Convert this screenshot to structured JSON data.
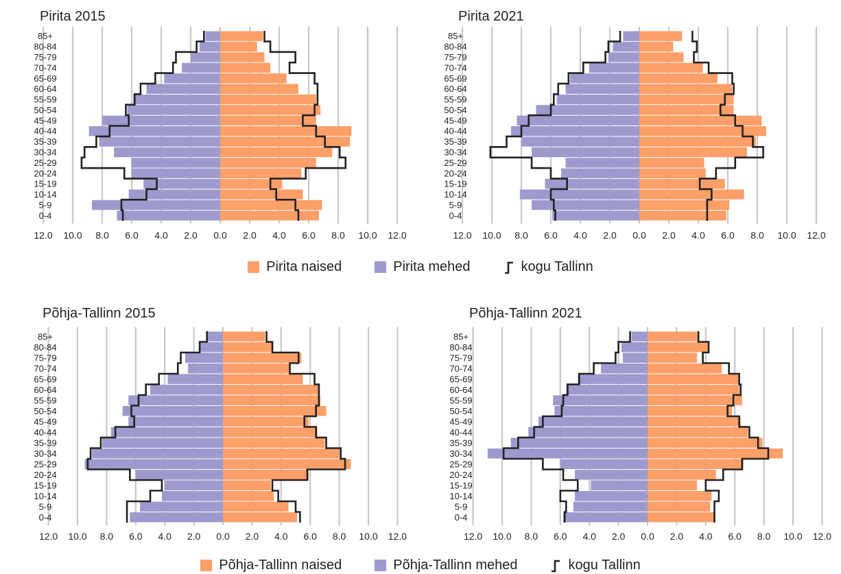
{
  "colors": {
    "female": "#FD9F69",
    "male": "#9E9ACE",
    "outline": "#222222",
    "grid": "#C8C8C8"
  },
  "age_groups": [
    "85+",
    "80-84",
    "75-79",
    "70-74",
    "65-69",
    "60-64",
    "55-59",
    "50-54",
    "45-49",
    "40-44",
    "35-39",
    "30-34",
    "25-29",
    "20-24",
    "15-19",
    "10-14",
    "5-9",
    "0-4"
  ],
  "tick_labels": [
    "12.0",
    "10.0",
    "8.0",
    "6.0",
    "4.0",
    "2.0",
    "0.0",
    "2.0",
    "4.0",
    "6.0",
    "8.0",
    "10.0",
    "12.0"
  ],
  "legends": [
    {
      "female_label": "Pirita naised",
      "male_label": "Pirita mehed",
      "outline_label": "kogu Tallinn"
    },
    {
      "female_label": "Põhja-Tallinn naised",
      "male_label": "Põhja-Tallinn mehed",
      "outline_label": "kogu Tallinn"
    }
  ],
  "chart_data": [
    {
      "type": "bar",
      "title": "Pirita 2015",
      "xlim": [
        -12,
        12
      ],
      "categories": [
        "85+",
        "80-84",
        "75-79",
        "70-74",
        "65-69",
        "60-64",
        "55-59",
        "50-54",
        "45-49",
        "40-44",
        "35-39",
        "30-34",
        "25-29",
        "20-24",
        "15-19",
        "10-14",
        "5-9",
        "0-4"
      ],
      "series": [
        {
          "name": "Pirita mehed",
          "values": [
            -1.0,
            -1.4,
            -2.0,
            -2.6,
            -3.8,
            -5.0,
            -5.9,
            -6.3,
            -8.0,
            -8.9,
            -8.2,
            -7.2,
            -6.0,
            -6.0,
            -5.2,
            -6.2,
            -8.7,
            -7.0
          ]
        },
        {
          "name": "Pirita naised",
          "values": [
            2.9,
            2.5,
            3.0,
            3.4,
            4.5,
            5.3,
            6.5,
            6.8,
            6.5,
            8.9,
            8.8,
            7.6,
            6.5,
            5.5,
            4.2,
            5.6,
            6.9,
            6.7
          ]
        },
        {
          "name": "kogu Tallinn",
          "male": [
            -1.1,
            -1.6,
            -3.0,
            -3.2,
            -4.4,
            -5.4,
            -5.8,
            -6.4,
            -6.2,
            -7.5,
            -8.4,
            -9.2,
            -9.4,
            -6.5,
            -4.3,
            -5.0,
            -6.7,
            -6.6
          ],
          "female": [
            3.0,
            3.4,
            5.1,
            4.7,
            6.4,
            6.6,
            6.6,
            6.4,
            5.6,
            6.5,
            7.1,
            8.1,
            8.5,
            5.8,
            3.4,
            3.8,
            5.1,
            5.3
          ]
        }
      ]
    },
    {
      "type": "bar",
      "title": "Pirita 2021",
      "xlim": [
        -12,
        12
      ],
      "categories": [
        "85+",
        "80-84",
        "75-79",
        "70-74",
        "65-69",
        "60-64",
        "55-59",
        "50-54",
        "45-49",
        "40-44",
        "35-39",
        "30-34",
        "25-29",
        "20-24",
        "15-19",
        "10-14",
        "5-9",
        "0-4"
      ],
      "series": [
        {
          "name": "Pirita mehed",
          "values": [
            -1.1,
            -1.8,
            -2.1,
            -3.4,
            -4.7,
            -5.0,
            -5.6,
            -7.0,
            -8.3,
            -8.7,
            -8.0,
            -7.3,
            -5.0,
            -5.3,
            -6.4,
            -8.1,
            -7.3,
            -5.9
          ]
        },
        {
          "name": "Pirita naised",
          "values": [
            2.9,
            2.3,
            3.0,
            4.3,
            5.3,
            6.3,
            6.4,
            6.4,
            8.3,
            8.6,
            7.9,
            7.3,
            4.4,
            4.5,
            5.8,
            7.1,
            6.1,
            5.9
          ]
        },
        {
          "name": "kogu Tallinn",
          "male": [
            -1.3,
            -2.1,
            -2.3,
            -3.8,
            -4.8,
            -5.5,
            -5.8,
            -6.0,
            -7.5,
            -8.0,
            -9.0,
            -10.1,
            -7.3,
            -6.0,
            -4.9,
            -6.0,
            -5.8,
            -5.7
          ],
          "female": [
            3.6,
            3.9,
            3.7,
            4.7,
            6.3,
            6.4,
            5.8,
            5.5,
            6.5,
            7.0,
            7.7,
            8.4,
            6.5,
            5.2,
            4.1,
            4.9,
            4.6,
            4.6
          ]
        }
      ]
    },
    {
      "type": "bar",
      "title": "Põhja-Tallinn 2015",
      "xlim": [
        -12,
        12
      ],
      "categories": [
        "85+",
        "80-84",
        "75-79",
        "70-74",
        "65-69",
        "60-64",
        "55-59",
        "50-54",
        "45-49",
        "40-44",
        "35-39",
        "30-34",
        "25-29",
        "20-24",
        "15-19",
        "10-14",
        "5-9",
        "0-4"
      ],
      "series": [
        {
          "name": "Põhja-Tallinn mehed",
          "values": [
            -1.1,
            -1.6,
            -2.6,
            -2.4,
            -3.8,
            -5.0,
            -6.5,
            -6.9,
            -6.5,
            -7.7,
            -8.3,
            -9.0,
            -9.5,
            -6.0,
            -4.0,
            -4.2,
            -5.7,
            -6.4
          ]
        },
        {
          "name": "Põhja-Tallinn naised",
          "values": [
            2.9,
            3.4,
            5.4,
            4.6,
            5.5,
            6.6,
            6.7,
            7.1,
            5.9,
            6.5,
            7.0,
            8.0,
            8.8,
            5.9,
            3.3,
            3.5,
            4.5,
            5.1
          ]
        },
        {
          "name": "kogu Tallinn",
          "male": [
            -1.1,
            -1.6,
            -2.9,
            -3.1,
            -4.4,
            -5.3,
            -5.8,
            -6.3,
            -6.1,
            -7.4,
            -8.4,
            -9.1,
            -9.3,
            -6.4,
            -4.2,
            -5.0,
            -6.6,
            -6.6
          ],
          "female": [
            3.0,
            3.4,
            5.2,
            4.6,
            6.3,
            6.6,
            6.6,
            6.4,
            5.6,
            6.4,
            7.1,
            8.1,
            8.4,
            5.8,
            3.4,
            3.8,
            5.0,
            5.3
          ]
        }
      ]
    },
    {
      "type": "bar",
      "title": "Põhja-Tallinn 2021",
      "xlim": [
        -12,
        12
      ],
      "categories": [
        "85+",
        "80-84",
        "75-79",
        "70-74",
        "65-69",
        "60-64",
        "55-59",
        "50-54",
        "45-49",
        "40-44",
        "35-39",
        "30-34",
        "25-29",
        "20-24",
        "15-19",
        "10-14",
        "5-9",
        "0-4"
      ],
      "series": [
        {
          "name": "Põhja-Tallinn mehed",
          "values": [
            -1.1,
            -1.8,
            -1.7,
            -3.2,
            -4.8,
            -5.6,
            -6.5,
            -6.4,
            -7.5,
            -8.2,
            -9.4,
            -11.0,
            -6.0,
            -5.0,
            -3.9,
            -5.0,
            -5.1,
            -5.8
          ]
        },
        {
          "name": "Põhja-Tallinn naised",
          "values": [
            3.5,
            4.2,
            3.4,
            5.1,
            6.3,
            6.3,
            6.5,
            5.8,
            6.4,
            6.9,
            7.9,
            9.3,
            6.6,
            4.7,
            3.4,
            4.4,
            4.3,
            4.6
          ]
        },
        {
          "name": "kogu Tallinn",
          "male": [
            -1.2,
            -2.0,
            -2.2,
            -3.7,
            -4.7,
            -5.5,
            -5.8,
            -5.9,
            -7.2,
            -7.8,
            -8.9,
            -9.9,
            -7.2,
            -5.8,
            -4.8,
            -6.0,
            -5.6,
            -5.7
          ],
          "female": [
            3.5,
            4.2,
            3.8,
            5.6,
            6.3,
            6.4,
            5.9,
            5.5,
            6.3,
            7.0,
            7.6,
            8.3,
            6.5,
            5.2,
            4.0,
            4.9,
            4.6,
            4.6
          ]
        }
      ]
    }
  ]
}
